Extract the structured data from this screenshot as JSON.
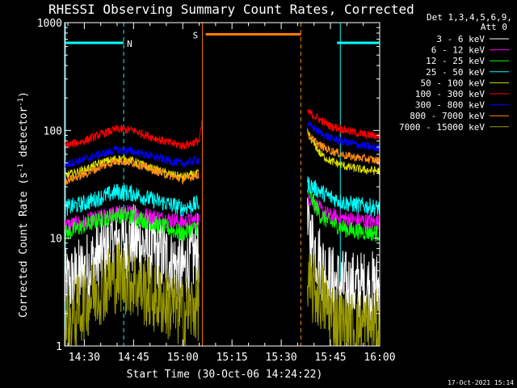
{
  "chart_data": {
    "type": "line",
    "title": "RHESSI Observing Summary Count Rates, Corrected",
    "xlabel": "Start Time (30-Oct-06 14:24:22)",
    "ylabel": "Corrected Count Rate (s",
    "ylabel_sup1": "-1",
    "ylabel_mid": " detector",
    "ylabel_sup2": "-1",
    "ylabel_end": ")",
    "yscale": "log",
    "ylim": [
      1,
      1000
    ],
    "xlim_min": [
      864,
      960
    ],
    "y_ticks": [
      "1",
      "10",
      "100",
      "1000"
    ],
    "x_ticks": [
      "14:30",
      "14:45",
      "15:00",
      "15:15",
      "15:30",
      "15:45",
      "16:00"
    ],
    "x_tick_values": [
      870,
      885,
      900,
      915,
      930,
      945,
      960
    ],
    "date_stamp": "17-Oct-2021 15:14",
    "legend_header": [
      "Det 1,3,4,5,6,9,",
      "Att 0"
    ],
    "legend_position": "right",
    "flags": [
      {
        "label": "N",
        "color": "#00ffff",
        "segments": [
          [
            864,
            882
          ],
          [
            947,
            960
          ]
        ],
        "markers": [
          882,
          948,
          960
        ],
        "level": 650
      },
      {
        "label": "S",
        "color": "#ff8000",
        "segments": [
          [
            907,
            936
          ]
        ],
        "markers": [
          906,
          936
        ],
        "level": 780
      }
    ],
    "data_gap": [
      907,
      936
    ],
    "series": [
      {
        "name": "3 - 6 keV",
        "color": "#ffffff",
        "points": [
          [
            864,
            3.5
          ],
          [
            870,
            5
          ],
          [
            875,
            7
          ],
          [
            880,
            9
          ],
          [
            885,
            9.5
          ],
          [
            890,
            8
          ],
          [
            895,
            6.5
          ],
          [
            900,
            5
          ],
          [
            905,
            8
          ],
          [
            938,
            12
          ],
          [
            942,
            6
          ],
          [
            945,
            4
          ],
          [
            950,
            3.5
          ],
          [
            955,
            3.5
          ],
          [
            960,
            3.5
          ]
        ]
      },
      {
        "name": "6 - 12 keV",
        "color": "#ff00ff",
        "points": [
          [
            864,
            13
          ],
          [
            870,
            14
          ],
          [
            875,
            15.5
          ],
          [
            880,
            17
          ],
          [
            885,
            17
          ],
          [
            890,
            16
          ],
          [
            895,
            15
          ],
          [
            900,
            14
          ],
          [
            905,
            15
          ],
          [
            938,
            25
          ],
          [
            942,
            18
          ],
          [
            945,
            16
          ],
          [
            950,
            15
          ],
          [
            955,
            14.5
          ],
          [
            960,
            14
          ]
        ]
      },
      {
        "name": "12 - 25 keV",
        "color": "#00ff00",
        "points": [
          [
            864,
            11
          ],
          [
            870,
            13
          ],
          [
            875,
            15
          ],
          [
            880,
            16.5
          ],
          [
            885,
            16
          ],
          [
            890,
            14
          ],
          [
            895,
            12.5
          ],
          [
            900,
            11
          ],
          [
            905,
            13
          ],
          [
            938,
            28
          ],
          [
            942,
            16
          ],
          [
            945,
            14
          ],
          [
            950,
            12
          ],
          [
            955,
            11.5
          ],
          [
            960,
            11
          ]
        ]
      },
      {
        "name": "25 - 50 keV",
        "color": "#00ffff",
        "points": [
          [
            864,
            19
          ],
          [
            870,
            21
          ],
          [
            875,
            24
          ],
          [
            880,
            27
          ],
          [
            885,
            26
          ],
          [
            890,
            23
          ],
          [
            895,
            21
          ],
          [
            900,
            19
          ],
          [
            905,
            21
          ],
          [
            938,
            32
          ],
          [
            942,
            27
          ],
          [
            945,
            24
          ],
          [
            950,
            21
          ],
          [
            955,
            20
          ],
          [
            960,
            19
          ]
        ]
      },
      {
        "name": "50 - 100 keV",
        "color": "#dddd00",
        "points": [
          [
            864,
            38
          ],
          [
            870,
            43
          ],
          [
            875,
            50
          ],
          [
            880,
            55
          ],
          [
            885,
            52
          ],
          [
            890,
            45
          ],
          [
            895,
            40
          ],
          [
            900,
            37
          ],
          [
            905,
            40
          ],
          [
            938,
            95
          ],
          [
            942,
            60
          ],
          [
            945,
            52
          ],
          [
            950,
            46
          ],
          [
            955,
            43
          ],
          [
            960,
            42
          ]
        ]
      },
      {
        "name": "100 - 300 keV",
        "color": "#ff0000",
        "points": [
          [
            864,
            72
          ],
          [
            870,
            80
          ],
          [
            875,
            92
          ],
          [
            880,
            103
          ],
          [
            885,
            100
          ],
          [
            890,
            88
          ],
          [
            895,
            78
          ],
          [
            900,
            72
          ],
          [
            905,
            80
          ],
          [
            906,
            125
          ],
          [
            938,
            150
          ],
          [
            942,
            125
          ],
          [
            945,
            110
          ],
          [
            950,
            100
          ],
          [
            955,
            92
          ],
          [
            960,
            88
          ]
        ]
      },
      {
        "name": "300 - 800 keV",
        "color": "#0000ff",
        "points": [
          [
            864,
            48
          ],
          [
            870,
            54
          ],
          [
            875,
            60
          ],
          [
            880,
            66
          ],
          [
            885,
            64
          ],
          [
            890,
            58
          ],
          [
            895,
            53
          ],
          [
            900,
            49
          ],
          [
            905,
            54
          ],
          [
            938,
            115
          ],
          [
            942,
            95
          ],
          [
            945,
            85
          ],
          [
            950,
            77
          ],
          [
            955,
            72
          ],
          [
            960,
            68
          ]
        ]
      },
      {
        "name": "800 - 7000 keV",
        "color": "#ff8c1a",
        "points": [
          [
            864,
            34
          ],
          [
            870,
            39
          ],
          [
            875,
            46
          ],
          [
            880,
            52
          ],
          [
            885,
            50
          ],
          [
            890,
            44
          ],
          [
            895,
            39
          ],
          [
            900,
            35
          ],
          [
            905,
            39
          ],
          [
            938,
            90
          ],
          [
            942,
            72
          ],
          [
            945,
            65
          ],
          [
            950,
            58
          ],
          [
            955,
            55
          ],
          [
            960,
            52
          ]
        ]
      },
      {
        "name": "7000 - 15000 keV",
        "color": "#999900",
        "points": [
          [
            864,
            1.5
          ],
          [
            870,
            2.5
          ],
          [
            875,
            3.5
          ],
          [
            880,
            4.5
          ],
          [
            885,
            4
          ],
          [
            890,
            3
          ],
          [
            895,
            2.5
          ],
          [
            900,
            2
          ],
          [
            905,
            2.5
          ],
          [
            938,
            3.5
          ],
          [
            942,
            3
          ],
          [
            945,
            2
          ],
          [
            950,
            1.5
          ],
          [
            955,
            1.5
          ],
          [
            960,
            1.5
          ]
        ]
      }
    ]
  }
}
